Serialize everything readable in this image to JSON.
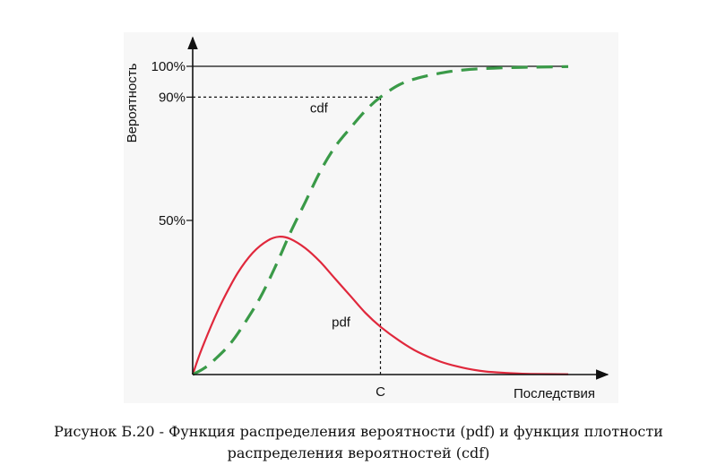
{
  "chart_data": {
    "type": "line",
    "xlabel": "Последствия",
    "ylabel": "Вероятность",
    "x_ticks": [
      {
        "x": 0.5,
        "label": "C"
      }
    ],
    "y_ticks": [
      {
        "y": 0.5,
        "label": "50%"
      },
      {
        "y": 0.9,
        "label": "90%"
      },
      {
        "y": 1.0,
        "label": "100%"
      }
    ],
    "xlim": [
      0,
      1
    ],
    "ylim": [
      0,
      1.1
    ],
    "grid": false,
    "legend": "none",
    "series": [
      {
        "name": "pdf",
        "color": "#e0283c",
        "style": "solid",
        "x": [
          0,
          0.02,
          0.05,
          0.08,
          0.12,
          0.16,
          0.2,
          0.23,
          0.26,
          0.3,
          0.34,
          0.38,
          0.42,
          0.46,
          0.5,
          0.55,
          0.6,
          0.66,
          0.72,
          0.78,
          0.84,
          0.9,
          1.0
        ],
        "values": [
          0,
          0.07,
          0.16,
          0.24,
          0.33,
          0.395,
          0.435,
          0.447,
          0.44,
          0.41,
          0.365,
          0.31,
          0.255,
          0.2,
          0.155,
          0.11,
          0.073,
          0.042,
          0.022,
          0.01,
          0.005,
          0.002,
          0.001
        ]
      },
      {
        "name": "cdf",
        "color": "#3a9a48",
        "style": "dashed",
        "x": [
          0,
          0.03,
          0.06,
          0.1,
          0.14,
          0.18,
          0.22,
          0.26,
          0.3,
          0.34,
          0.38,
          0.42,
          0.46,
          0.5,
          0.55,
          0.6,
          0.66,
          0.72,
          0.8,
          0.9,
          1.0
        ],
        "values": [
          0,
          0.02,
          0.05,
          0.1,
          0.17,
          0.25,
          0.35,
          0.46,
          0.56,
          0.66,
          0.74,
          0.8,
          0.856,
          0.9,
          0.94,
          0.962,
          0.978,
          0.988,
          0.994,
          0.997,
          0.999
        ]
      }
    ],
    "annotations": [
      {
        "text": "cdf",
        "x": 0.36,
        "y": 0.85
      },
      {
        "text": "pdf",
        "x": 0.42,
        "y": 0.155
      }
    ],
    "reference_lines": [
      {
        "type": "horizontal",
        "y": 1.0,
        "style": "solid",
        "x_to": 1.0
      },
      {
        "type": "horizontal",
        "y": 0.9,
        "style": "dotted",
        "x_to": 0.5
      },
      {
        "type": "vertical",
        "x": 0.5,
        "style": "dotted",
        "y_to": 0.9
      }
    ]
  },
  "caption": {
    "line1": "Рисунок Б.20 - Функция распределения вероятности (pdf) и функция плотности",
    "line2": "распределения вероятностей (cdf)"
  }
}
